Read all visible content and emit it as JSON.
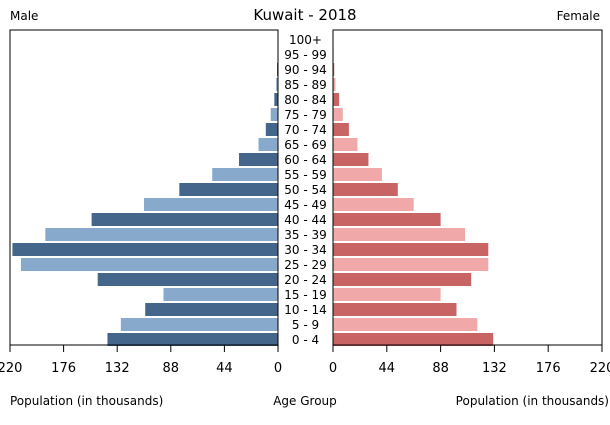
{
  "chart_data": {
    "type": "bar",
    "subtype": "population-pyramid",
    "title": "Kuwait - 2018",
    "left_label": "Male",
    "right_label": "Female",
    "xlabel_left": "Population (in thousands)",
    "xlabel_center": "Age Group",
    "xlabel_right": "Population (in thousands)",
    "xlim": [
      0,
      220
    ],
    "ticks": [
      0,
      44,
      88,
      132,
      176,
      220
    ],
    "categories": [
      "100+",
      "95 - 99",
      "90 - 94",
      "85 - 89",
      "80 - 84",
      "75 - 79",
      "70 - 74",
      "65 - 69",
      "60 - 64",
      "55 - 59",
      "50 - 54",
      "45 - 49",
      "40 - 44",
      "35 - 39",
      "30 - 34",
      "25 - 29",
      "20 - 24",
      "15 - 19",
      "10 - 14",
      "5 - 9",
      "0 - 4"
    ],
    "series": [
      {
        "name": "Male",
        "colors": [
          "#44668a",
          "#87a9cc"
        ],
        "values": [
          0.1,
          0.3,
          0.8,
          1.5,
          3,
          6,
          10,
          16,
          32,
          54,
          81,
          110,
          153,
          191,
          218,
          211,
          148,
          94,
          109,
          129,
          140
        ]
      },
      {
        "name": "Female",
        "colors": [
          "#c96464",
          "#f0a8a8"
        ],
        "values": [
          0.2,
          0.5,
          1,
          2,
          5,
          8,
          13,
          20,
          29,
          40,
          53,
          66,
          88,
          108,
          127,
          127,
          113,
          88,
          101,
          118,
          131
        ]
      }
    ],
    "grid": false
  }
}
